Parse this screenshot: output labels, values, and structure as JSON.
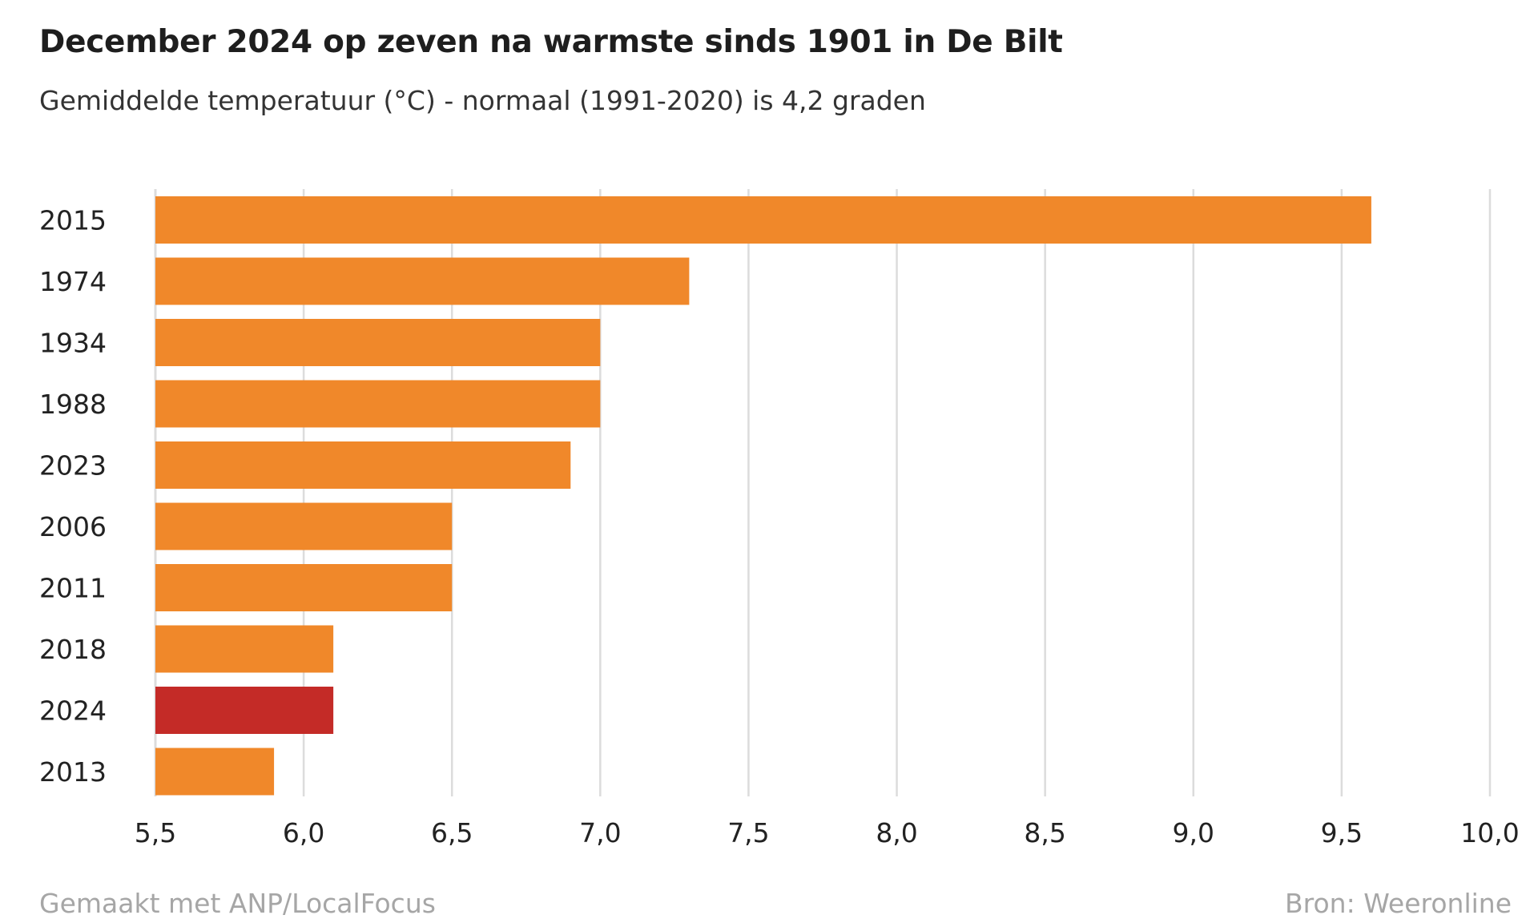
{
  "chart_data": {
    "type": "bar",
    "orientation": "horizontal",
    "title": "December 2024 op zeven na warmste sinds 1901 in De Bilt",
    "subtitle": "Gemiddelde temperatuur (°C) - normaal (1991-2020) is 4,2 graden",
    "categories": [
      "2015",
      "1974",
      "1934",
      "1988",
      "2023",
      "2006",
      "2011",
      "2018",
      "2024",
      "2013"
    ],
    "values": [
      9.6,
      7.3,
      7.0,
      7.0,
      6.9,
      6.5,
      6.5,
      6.1,
      6.1,
      5.9
    ],
    "highlight_category": "2024",
    "xlim": [
      5.5,
      10.0
    ],
    "xticks": [
      5.5,
      6.0,
      6.5,
      7.0,
      7.5,
      8.0,
      8.5,
      9.0,
      9.5,
      10.0
    ],
    "xtick_labels": [
      "5,5",
      "6,0",
      "6,5",
      "7,0",
      "7,5",
      "8,0",
      "8,5",
      "9,0",
      "9,5",
      "10,0"
    ],
    "grid": "vertical",
    "colors": {
      "bar": "#f0882a",
      "highlight": "#c42b27",
      "grid": "#dcdcdc"
    }
  },
  "footer": {
    "left": "Gemaakt met ANP/LocalFocus",
    "right": "Bron: Weeronline"
  }
}
